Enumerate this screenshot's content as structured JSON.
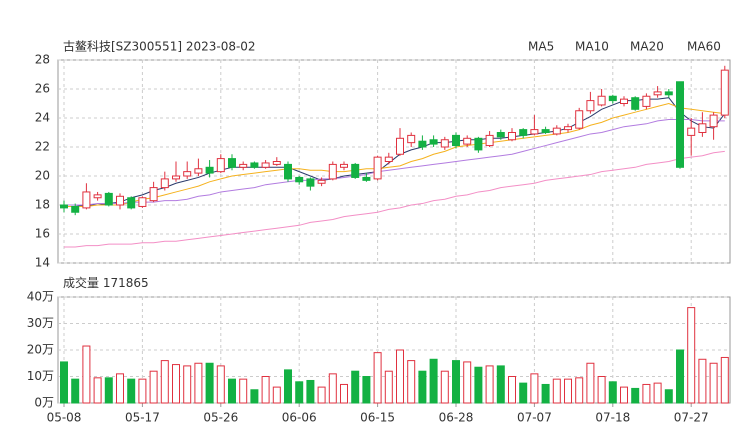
{
  "chart_data": [
    {
      "type": "candlestick",
      "title": "古鳌科技[SZ300551] 2023-08-02",
      "up_color": "#e0313f",
      "down_color": "#13b143",
      "ylim": [
        14,
        28
      ],
      "yticks": [
        14,
        16,
        18,
        20,
        22,
        24,
        26,
        28
      ],
      "grid": true,
      "open": [
        18.0,
        17.9,
        17.8,
        18.5,
        18.8,
        18.0,
        18.5,
        17.9,
        18.3,
        19.2,
        19.8,
        20.0,
        20.2,
        20.6,
        20.3,
        21.2,
        20.6,
        20.9,
        20.6,
        20.8,
        20.8,
        19.9,
        19.8,
        19.5,
        19.8,
        20.6,
        20.8,
        19.9,
        19.8,
        21.0,
        21.5,
        22.3,
        22.4,
        22.5,
        22.0,
        22.8,
        22.2,
        22.6,
        22.1,
        23.0,
        22.5,
        23.2,
        22.9,
        23.2,
        22.9,
        23.2,
        23.3,
        24.5,
        24.9,
        25.5,
        25.0,
        25.4,
        24.8,
        25.6,
        25.8,
        26.5,
        22.8,
        23.0,
        23.4,
        24.2
      ],
      "close": [
        17.8,
        17.5,
        18.9,
        18.7,
        18.0,
        18.6,
        17.8,
        18.5,
        19.2,
        19.8,
        20.0,
        20.3,
        20.5,
        20.2,
        21.2,
        20.6,
        20.8,
        20.6,
        20.9,
        21.0,
        19.8,
        19.6,
        19.3,
        19.7,
        20.8,
        20.8,
        19.9,
        19.7,
        21.3,
        21.3,
        22.6,
        22.8,
        22.0,
        22.2,
        22.5,
        22.1,
        22.6,
        21.8,
        22.8,
        22.7,
        23.0,
        22.8,
        23.2,
        23.0,
        23.3,
        23.4,
        24.5,
        25.2,
        25.5,
        25.2,
        25.3,
        24.6,
        25.5,
        25.8,
        25.6,
        20.6,
        23.3,
        23.6,
        24.2,
        27.3
      ],
      "high": [
        18.3,
        18.1,
        19.5,
        18.9,
        18.9,
        18.8,
        18.6,
        18.6,
        19.6,
        20.3,
        21.0,
        21.0,
        21.2,
        21.1,
        21.5,
        21.5,
        21.0,
        21.0,
        21.1,
        21.3,
        21.0,
        20.0,
        19.9,
        19.9,
        21.0,
        21.0,
        20.9,
        20.2,
        21.4,
        21.6,
        23.3,
        23.0,
        22.8,
        22.8,
        22.7,
        23.0,
        22.8,
        22.7,
        23.1,
        23.2,
        23.3,
        23.3,
        24.2,
        23.4,
        23.5,
        23.6,
        24.7,
        25.8,
        26.0,
        25.6,
        25.5,
        25.5,
        25.7,
        26.2,
        26.0,
        26.5,
        24.0,
        24.4,
        24.4,
        27.6
      ],
      "low": [
        17.5,
        17.3,
        17.7,
        18.3,
        17.9,
        17.7,
        17.7,
        17.8,
        18.2,
        19.0,
        19.6,
        19.8,
        20.0,
        19.9,
        20.2,
        20.4,
        20.4,
        20.5,
        20.5,
        20.7,
        19.6,
        19.4,
        19.0,
        19.3,
        19.7,
        20.4,
        19.8,
        19.6,
        19.7,
        20.8,
        21.4,
        22.0,
        21.8,
        22.0,
        21.8,
        21.9,
        22.0,
        21.6,
        22.0,
        22.5,
        22.4,
        22.6,
        22.8,
        22.9,
        22.8,
        23.0,
        23.2,
        24.3,
        24.8,
        25.0,
        24.8,
        24.5,
        24.6,
        25.4,
        25.4,
        20.5,
        21.4,
        22.7,
        22.5,
        24.0
      ],
      "series": [
        {
          "name": "MA5",
          "color": "#2b3a6b",
          "values": [
            17.9,
            17.9,
            18.0,
            18.0,
            18.1,
            18.2,
            18.5,
            18.7,
            19.0,
            19.2,
            19.5,
            19.7,
            19.9,
            20.2,
            20.4,
            20.6,
            20.6,
            20.6,
            20.6,
            20.6,
            20.6,
            20.3,
            20.0,
            19.7,
            19.8,
            20.0,
            20.1,
            20.2,
            20.3,
            20.9,
            21.5,
            21.8,
            22.0,
            22.3,
            22.3,
            22.4,
            22.5,
            22.5,
            22.6,
            22.6,
            22.7,
            22.8,
            22.9,
            23.0,
            23.1,
            23.3,
            23.7,
            24.1,
            24.6,
            24.9,
            25.2,
            25.2,
            25.3,
            25.3,
            25.4,
            24.4,
            23.8,
            23.4,
            23.3,
            24.3
          ]
        },
        {
          "name": "MA10",
          "color": "#f5b21e",
          "values": [
            17.9,
            17.9,
            17.9,
            18.0,
            18.0,
            18.0,
            18.2,
            18.4,
            18.5,
            18.7,
            18.9,
            19.1,
            19.3,
            19.6,
            19.8,
            20.0,
            20.1,
            20.2,
            20.3,
            20.4,
            20.5,
            20.5,
            20.4,
            20.4,
            20.3,
            20.3,
            20.4,
            20.5,
            20.5,
            20.6,
            20.7,
            21.0,
            21.2,
            21.5,
            21.7,
            22.0,
            22.1,
            22.2,
            22.3,
            22.4,
            22.5,
            22.6,
            22.7,
            22.8,
            22.9,
            23.0,
            23.2,
            23.5,
            23.7,
            24.0,
            24.2,
            24.4,
            24.6,
            24.8,
            25.0,
            24.7,
            24.6,
            24.5,
            24.4,
            24.3
          ]
        },
        {
          "name": "MA20",
          "color": "#b27ce0",
          "values": [
            18.0,
            18.0,
            18.0,
            18.1,
            18.1,
            18.1,
            18.2,
            18.2,
            18.2,
            18.3,
            18.3,
            18.4,
            18.6,
            18.7,
            18.9,
            19.0,
            19.1,
            19.2,
            19.4,
            19.5,
            19.6,
            19.7,
            19.7,
            19.8,
            19.8,
            19.9,
            20.0,
            20.1,
            20.3,
            20.4,
            20.5,
            20.6,
            20.7,
            20.8,
            20.9,
            21.0,
            21.1,
            21.2,
            21.3,
            21.4,
            21.5,
            21.7,
            21.9,
            22.1,
            22.3,
            22.5,
            22.7,
            22.9,
            23.0,
            23.2,
            23.4,
            23.5,
            23.6,
            23.8,
            23.9,
            23.9,
            23.9,
            23.8,
            23.8,
            23.8
          ]
        },
        {
          "name": "MA60",
          "color": "#f38fc6",
          "values": [
            15.1,
            15.1,
            15.2,
            15.2,
            15.3,
            15.3,
            15.3,
            15.4,
            15.4,
            15.5,
            15.5,
            15.6,
            15.7,
            15.8,
            15.9,
            16.0,
            16.1,
            16.2,
            16.3,
            16.4,
            16.5,
            16.6,
            16.8,
            16.9,
            17.0,
            17.2,
            17.3,
            17.4,
            17.5,
            17.7,
            17.8,
            18.0,
            18.1,
            18.3,
            18.4,
            18.6,
            18.7,
            18.9,
            19.0,
            19.2,
            19.3,
            19.4,
            19.5,
            19.7,
            19.8,
            19.9,
            20.0,
            20.1,
            20.3,
            20.4,
            20.5,
            20.6,
            20.8,
            20.9,
            21.0,
            21.2,
            21.3,
            21.4,
            21.6,
            21.7
          ]
        }
      ]
    },
    {
      "type": "bar",
      "title": "成交量",
      "latest": 171865,
      "categories": [
        "05-08",
        null,
        null,
        null,
        null,
        null,
        null,
        "05-17",
        null,
        null,
        null,
        null,
        null,
        null,
        "05-26",
        null,
        null,
        null,
        null,
        null,
        null,
        "06-06",
        null,
        null,
        null,
        null,
        null,
        null,
        "06-15",
        null,
        null,
        null,
        null,
        null,
        null,
        "06-28",
        null,
        null,
        null,
        null,
        null,
        null,
        "07-07",
        null,
        null,
        null,
        null,
        null,
        null,
        "07-18",
        null,
        null,
        null,
        null,
        null,
        null,
        "07-27",
        null,
        null,
        null
      ],
      "values": [
        15.5,
        9,
        21.5,
        9.5,
        9.5,
        11,
        9,
        9,
        12,
        16,
        14.5,
        14,
        15,
        15,
        14,
        9,
        9,
        5,
        10,
        6,
        12.5,
        8,
        8.5,
        6,
        11,
        7,
        12,
        10,
        19,
        12,
        20,
        16,
        12,
        16.5,
        12,
        16,
        15.5,
        13.5,
        14,
        14,
        10,
        7.5,
        11,
        7,
        9,
        9,
        9.5,
        15,
        10,
        8,
        6,
        5.5,
        7,
        7.5,
        5,
        20,
        36,
        16.5,
        15,
        17.1865
      ],
      "ylim": [
        0,
        40
      ],
      "yticks": [
        {
          "value": 0,
          "label": "0万"
        },
        {
          "value": 10,
          "label": "10万"
        },
        {
          "value": 20,
          "label": "20万"
        },
        {
          "value": 30,
          "label": "30万"
        },
        {
          "value": 40,
          "label": "40万"
        }
      ],
      "grid": true,
      "label_color": "#e0313f"
    }
  ]
}
